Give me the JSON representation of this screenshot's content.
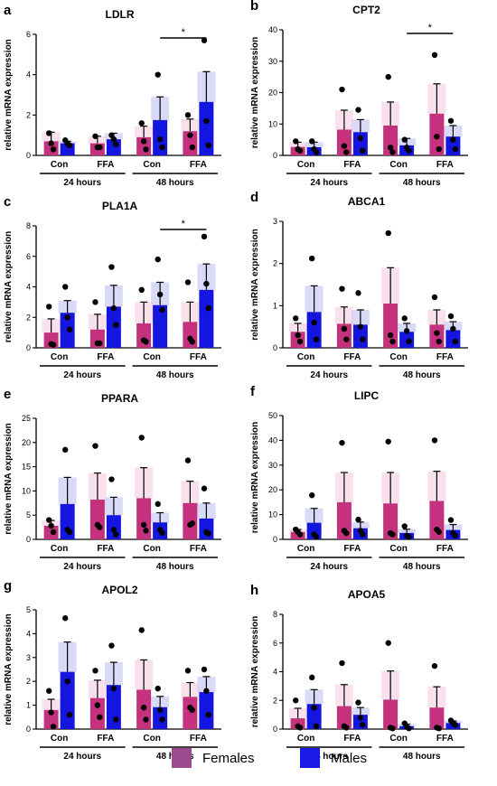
{
  "colors": {
    "females": "#c4317c",
    "females_err": "#f2c4dc",
    "males": "#1515e0",
    "males_err": "#b4b4f2",
    "legend_females": "#9b4c8f",
    "legend_males": "#1a1ae6",
    "dot": "#000000"
  },
  "legend": [
    {
      "name": "Females",
      "color_key": "legend_females"
    },
    {
      "name": "Males",
      "color_key": "legend_males"
    }
  ],
  "ylabel": "relative mRNA expression",
  "chart_data": [
    {
      "type": "bar",
      "panel": "a",
      "title": "LDLR",
      "categories": [
        "Con",
        "FFA",
        "Con",
        "FFA"
      ],
      "groups": [
        "24 hours",
        "48 hours"
      ],
      "ylabel": "relative mRNA expression",
      "ylim": [
        0,
        6
      ],
      "yticks": [
        0,
        2,
        4,
        6
      ],
      "series": [
        {
          "name": "Females",
          "values": [
            0.7,
            0.6,
            0.9,
            1.2
          ],
          "err": [
            0.45,
            0.35,
            0.55,
            0.6
          ],
          "points": [
            [
              1.1,
              0.6,
              0.3
            ],
            [
              0.95,
              0.4,
              0.4
            ],
            [
              1.6,
              0.7,
              0.3
            ],
            [
              2.0,
              1.0,
              0.4
            ]
          ]
        },
        {
          "name": "Males",
          "values": [
            0.6,
            0.8,
            1.75,
            2.65
          ],
          "err": [
            0.1,
            0.3,
            1.15,
            1.5
          ],
          "points": [
            [
              0.75,
              0.6,
              0.5
            ],
            [
              1.0,
              0.8,
              0.55
            ],
            [
              4.0,
              0.8,
              0.4
            ],
            [
              5.7,
              1.7,
              0.5
            ]
          ]
        }
      ],
      "significance": [
        {
          "from_group": 2,
          "from_series": 1,
          "to_group": 3,
          "to_series": 1,
          "label": "*"
        }
      ]
    },
    {
      "type": "bar",
      "panel": "b",
      "title": "CPT2",
      "categories": [
        "Con",
        "FFA",
        "Con",
        "FFA"
      ],
      "groups": [
        "24 hours",
        "48 hours"
      ],
      "ylabel": "relative mRNA expression",
      "ylim": [
        0,
        40
      ],
      "yticks": [
        0,
        10,
        20,
        30,
        40
      ],
      "series": [
        {
          "name": "Females",
          "values": [
            2.7,
            8.2,
            9.5,
            13.3
          ],
          "err": [
            1.5,
            6.2,
            7.5,
            9.5
          ],
          "points": [
            [
              4.5,
              2.0,
              1.5
            ],
            [
              21.0,
              3.0,
              1.0
            ],
            [
              25.0,
              2.5,
              1.0
            ],
            [
              32.0,
              6.0,
              2.0
            ]
          ]
        },
        {
          "name": "Males",
          "values": [
            2.6,
            7.4,
            3.2,
            6.0
          ],
          "err": [
            1.6,
            4.0,
            2.2,
            3.5
          ],
          "points": [
            [
              4.5,
              2.0,
              1.0
            ],
            [
              14.5,
              5.5,
              1.5
            ],
            [
              5.0,
              2.5,
              1.5
            ],
            [
              11.0,
              5.0,
              2.0
            ]
          ]
        }
      ],
      "significance": [
        {
          "from_group": 2,
          "from_series": 1,
          "to_group": 3,
          "to_series": 1,
          "label": "*"
        }
      ]
    },
    {
      "type": "bar",
      "panel": "c",
      "title": "PLA1A",
      "categories": [
        "Con",
        "FFA",
        "Con",
        "FFA"
      ],
      "groups": [
        "24 hours",
        "48 hours"
      ],
      "ylabel": "relative mRNA expression",
      "ylim": [
        0,
        8
      ],
      "yticks": [
        0,
        2,
        4,
        6,
        8
      ],
      "series": [
        {
          "name": "Females",
          "values": [
            1.0,
            1.2,
            1.6,
            1.7
          ],
          "err": [
            0.9,
            1.0,
            1.4,
            1.3
          ],
          "points": [
            [
              2.7,
              0.25,
              0.2
            ],
            [
              3.0,
              0.3,
              0.3
            ],
            [
              3.8,
              0.5,
              0.4
            ],
            [
              4.3,
              0.6,
              0.4
            ]
          ]
        },
        {
          "name": "Males",
          "values": [
            2.3,
            2.7,
            2.8,
            3.8
          ],
          "err": [
            0.8,
            1.4,
            1.5,
            1.7
          ],
          "points": [
            [
              4.0,
              2.0,
              1.2
            ],
            [
              5.3,
              2.6,
              1.5
            ],
            [
              5.8,
              3.5,
              2.5
            ],
            [
              7.3,
              4.2,
              2.6
            ]
          ]
        }
      ],
      "significance": [
        {
          "from_group": 2,
          "from_series": 1,
          "to_group": 3,
          "to_series": 1,
          "label": "*"
        }
      ]
    },
    {
      "type": "bar",
      "panel": "d",
      "title": "ABCA1",
      "categories": [
        "Con",
        "FFA",
        "Con",
        "FFA"
      ],
      "groups": [
        "24 hours",
        "48 hours"
      ],
      "ylabel": "relative mRNA expression",
      "ylim": [
        0,
        3
      ],
      "yticks": [
        0,
        1,
        2,
        3
      ],
      "series": [
        {
          "name": "Females",
          "values": [
            0.38,
            0.57,
            1.05,
            0.55
          ],
          "err": [
            0.2,
            0.4,
            0.85,
            0.35
          ],
          "points": [
            [
              0.7,
              0.3,
              0.15
            ],
            [
              1.4,
              0.45,
              0.2
            ],
            [
              2.72,
              0.3,
              0.15
            ],
            [
              1.2,
              0.35,
              0.15
            ]
          ]
        },
        {
          "name": "Males",
          "values": [
            0.85,
            0.55,
            0.38,
            0.42
          ],
          "err": [
            0.62,
            0.35,
            0.2,
            0.2
          ],
          "points": [
            [
              2.12,
              0.6,
              0.2
            ],
            [
              1.3,
              0.5,
              0.2
            ],
            [
              0.7,
              0.4,
              0.15
            ],
            [
              0.75,
              0.45,
              0.15
            ]
          ]
        }
      ],
      "significance": []
    },
    {
      "type": "bar",
      "panel": "e",
      "title": "PPARA",
      "categories": [
        "Con",
        "FFA",
        "Con",
        "FFA"
      ],
      "groups": [
        "24 hours",
        "48 hours"
      ],
      "ylabel": "relative mRNA expression",
      "ylim": [
        0,
        25
      ],
      "yticks": [
        0,
        5,
        10,
        15,
        20,
        25
      ],
      "series": [
        {
          "name": "Females",
          "values": [
            2.8,
            8.2,
            8.5,
            7.5
          ],
          "err": [
            1.1,
            5.5,
            6.3,
            4.5
          ],
          "points": [
            [
              4.0,
              2.8,
              1.5
            ],
            [
              19.3,
              3.0,
              2.5
            ],
            [
              21.0,
              3.0,
              1.8
            ],
            [
              16.3,
              3.0,
              3.3
            ]
          ]
        },
        {
          "name": "Males",
          "values": [
            7.3,
            5.0,
            3.5,
            4.3
          ],
          "err": [
            5.5,
            3.7,
            2.0,
            3.2
          ],
          "points": [
            [
              18.5,
              2.0,
              1.5
            ],
            [
              12.4,
              2.0,
              1.0
            ],
            [
              7.3,
              2.0,
              1.3
            ],
            [
              10.5,
              1.5,
              1.2
            ]
          ]
        }
      ],
      "significance": []
    },
    {
      "type": "bar",
      "panel": "f",
      "title": "LIPC",
      "categories": [
        "Con",
        "FFA",
        "Con",
        "FFA"
      ],
      "groups": [
        "24 hours",
        "48 hours"
      ],
      "ylabel": "relative mRNA expression",
      "ylim": [
        0,
        50
      ],
      "yticks": [
        0,
        10,
        20,
        30,
        40,
        50
      ],
      "series": [
        {
          "name": "Females",
          "values": [
            3.0,
            15.0,
            14.5,
            15.5
          ],
          "err": [
            1.0,
            12.0,
            12.5,
            12.0
          ],
          "points": [
            [
              4.0,
              3.0,
              2.0
            ],
            [
              39.0,
              3.5,
              2.5
            ],
            [
              39.5,
              2.5,
              2.0
            ],
            [
              40.0,
              4.0,
              3.0
            ]
          ]
        },
        {
          "name": "Males",
          "values": [
            6.7,
            4.5,
            2.6,
            3.8
          ],
          "err": [
            5.8,
            2.5,
            1.5,
            2.2
          ],
          "points": [
            [
              17.8,
              2.0,
              1.0
            ],
            [
              8.0,
              3.5,
              2.0
            ],
            [
              5.3,
              1.5,
              1.0
            ],
            [
              7.8,
              2.5,
              1.5
            ]
          ]
        }
      ],
      "significance": []
    },
    {
      "type": "bar",
      "panel": "g",
      "title": "APOL2",
      "categories": [
        "Con",
        "FFA",
        "Con",
        "FFA"
      ],
      "groups": [
        "24 hours",
        "48 hours"
      ],
      "ylabel": "relative mRNA expression",
      "ylim": [
        0,
        5
      ],
      "yticks": [
        0,
        1,
        2,
        3,
        4,
        5
      ],
      "series": [
        {
          "name": "Females",
          "values": [
            0.8,
            1.3,
            1.65,
            1.35
          ],
          "err": [
            0.45,
            0.75,
            1.25,
            0.6
          ],
          "points": [
            [
              1.6,
              0.7,
              0.1
            ],
            [
              2.45,
              1.0,
              0.5
            ],
            [
              4.15,
              0.9,
              0.4
            ],
            [
              2.45,
              0.9,
              0.8
            ]
          ]
        },
        {
          "name": "Males",
          "values": [
            2.4,
            1.85,
            0.92,
            1.55
          ],
          "err": [
            1.25,
            0.95,
            0.45,
            0.65
          ],
          "points": [
            [
              4.65,
              2.0,
              0.6
            ],
            [
              3.5,
              1.7,
              0.4
            ],
            [
              1.7,
              0.8,
              0.4
            ],
            [
              2.5,
              1.6,
              0.6
            ]
          ]
        }
      ],
      "significance": []
    },
    {
      "type": "bar",
      "panel": "h",
      "title": "APOA5",
      "categories": [
        "Con",
        "FFA",
        "Con",
        "FFA"
      ],
      "groups": [
        "24 hours",
        "48 hours"
      ],
      "ylabel": "relative mRNA expression",
      "ylim": [
        0,
        8
      ],
      "yticks": [
        0,
        2,
        4,
        6,
        8
      ],
      "series": [
        {
          "name": "Females",
          "values": [
            0.75,
            1.6,
            2.05,
            1.5
          ],
          "err": [
            0.7,
            1.5,
            2.0,
            1.45
          ],
          "points": [
            [
              2.0,
              0.2,
              0.1
            ],
            [
              4.6,
              0.2,
              0.1
            ],
            [
              6.0,
              0.1,
              0.05
            ],
            [
              4.4,
              0.1,
              0.05
            ]
          ]
        },
        {
          "name": "Males",
          "values": [
            1.75,
            1.0,
            0.2,
            0.42
          ],
          "err": [
            1.0,
            0.5,
            0.15,
            0.15
          ],
          "points": [
            [
              3.6,
              1.5,
              0.2
            ],
            [
              1.85,
              0.8,
              0.3
            ],
            [
              0.4,
              0.15,
              0.05
            ],
            [
              0.6,
              0.4,
              0.3
            ]
          ]
        }
      ],
      "significance": []
    }
  ]
}
